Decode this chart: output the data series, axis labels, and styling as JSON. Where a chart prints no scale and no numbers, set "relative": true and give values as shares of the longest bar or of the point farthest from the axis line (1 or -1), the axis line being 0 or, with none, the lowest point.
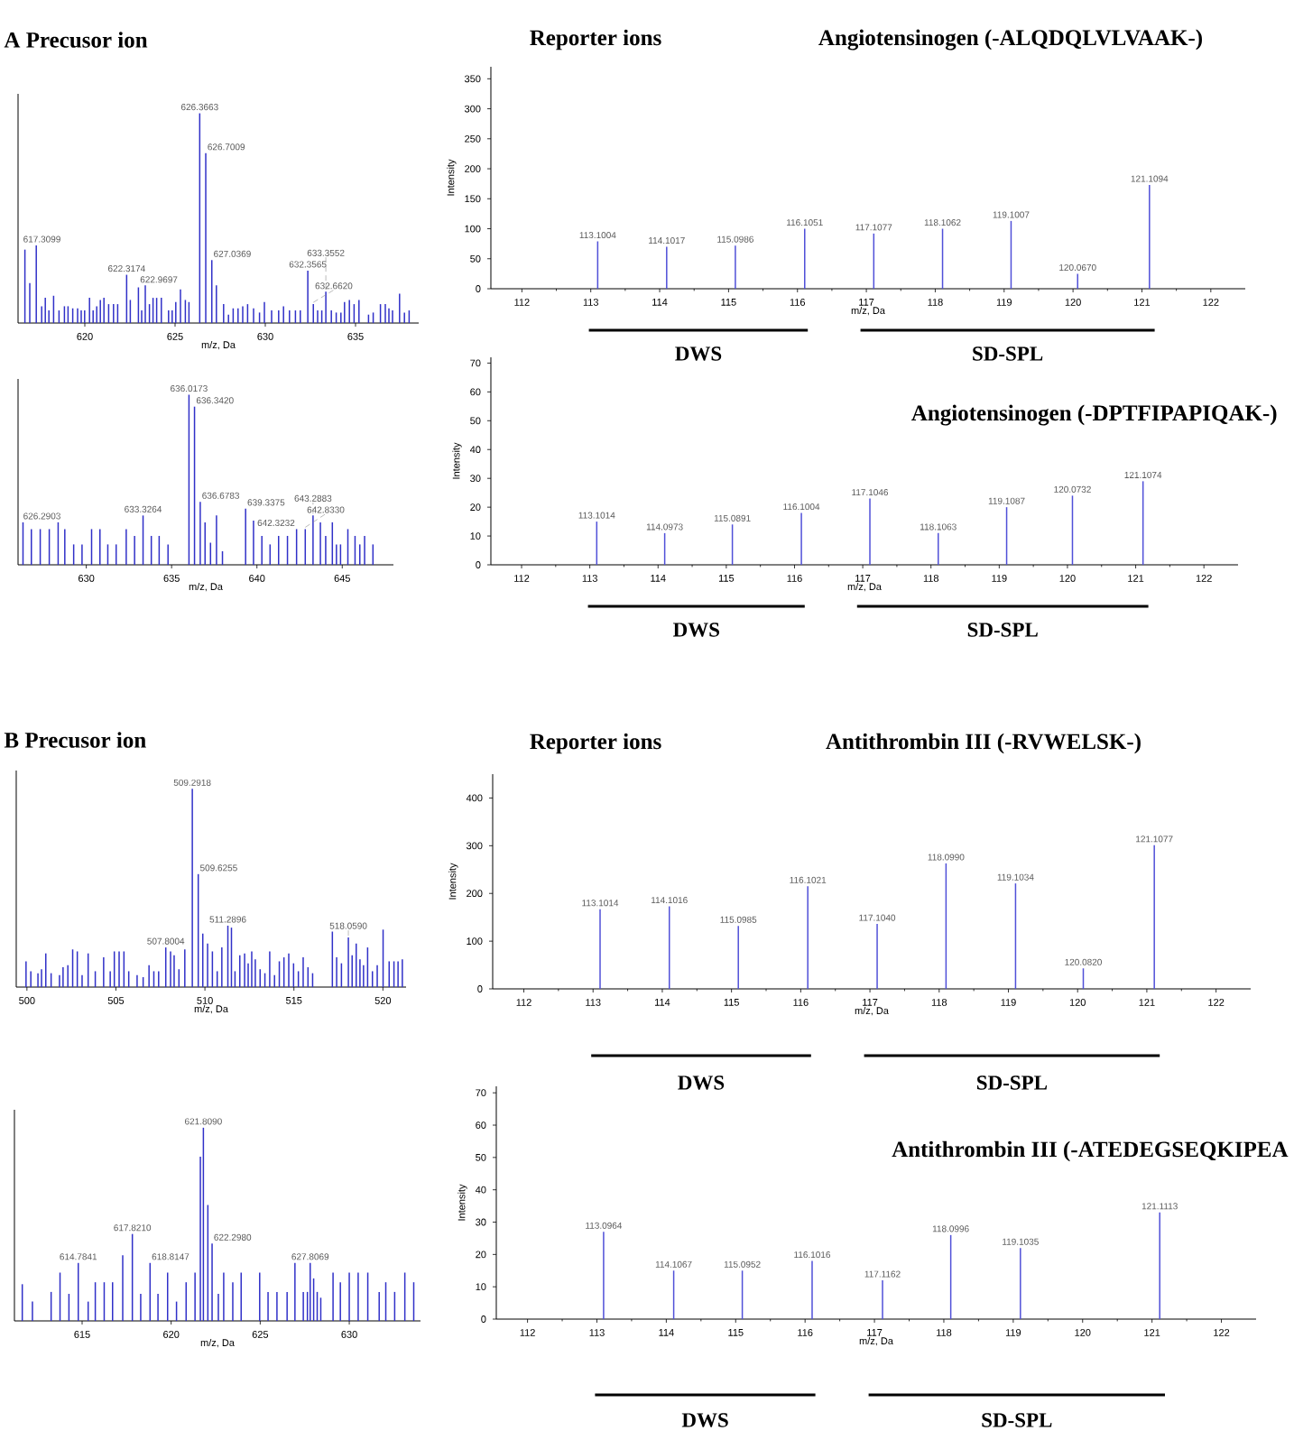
{
  "chart_data": [
    {
      "type": "bar",
      "title": "A Precusor ion",
      "xlabel": "m/z, Da",
      "relative": true,
      "tick_labels": "x",
      "color": "#3030c8",
      "xlim": [
        616.3,
        638.5
      ],
      "xticks": [
        620,
        625,
        630,
        635
      ],
      "x": [
        616.68,
        616.95,
        617.3099,
        617.61,
        617.81,
        618.01,
        618.27,
        618.57,
        618.87,
        619.07,
        619.33,
        619.6,
        619.8,
        619.99,
        620.26,
        620.46,
        620.66,
        620.86,
        621.06,
        621.32,
        621.59,
        621.82,
        622.3174,
        622.52,
        622.9697,
        623.15,
        623.35,
        623.58,
        623.78,
        623.98,
        624.24,
        624.64,
        624.84,
        625.04,
        625.3,
        625.57,
        625.77,
        626.3663,
        626.7009,
        627.0369,
        627.29,
        627.69,
        627.96,
        628.22,
        628.49,
        628.75,
        629.02,
        629.35,
        629.68,
        629.95,
        630.35,
        630.74,
        631.01,
        631.34,
        631.67,
        631.94,
        632.3565,
        632.662,
        632.9,
        633.13,
        633.3552,
        633.66,
        633.93,
        634.19,
        634.39,
        634.66,
        634.92,
        635.19,
        635.72,
        635.98,
        636.38,
        636.65,
        636.85,
        637.05,
        637.44,
        637.71,
        637.97
      ],
      "values": [
        0.35,
        0.19,
        0.37,
        0.08,
        0.12,
        0.06,
        0.13,
        0.06,
        0.08,
        0.08,
        0.07,
        0.07,
        0.06,
        0.06,
        0.12,
        0.06,
        0.08,
        0.11,
        0.12,
        0.09,
        0.09,
        0.09,
        0.23,
        0.11,
        0.17,
        0.06,
        0.18,
        0.09,
        0.12,
        0.12,
        0.12,
        0.06,
        0.06,
        0.1,
        0.16,
        0.11,
        0.1,
        1.0,
        0.81,
        0.3,
        0.18,
        0.09,
        0.04,
        0.07,
        0.07,
        0.08,
        0.09,
        0.07,
        0.05,
        0.1,
        0.06,
        0.06,
        0.08,
        0.06,
        0.06,
        0.06,
        0.25,
        0.09,
        0.06,
        0.06,
        0.15,
        0.06,
        0.05,
        0.05,
        0.1,
        0.11,
        0.09,
        0.11,
        0.04,
        0.05,
        0.09,
        0.09,
        0.07,
        0.06,
        0.14,
        0.05,
        0.06
      ],
      "annotations": [
        {
          "text": "617.3099",
          "x": 617.3099,
          "y": 0.37
        },
        {
          "text": "622.3174",
          "x": 622.3174,
          "y": 0.23
        },
        {
          "text": "622.9697",
          "x": 622.9697,
          "y": 0.17
        },
        {
          "text": "626.3663",
          "x": 626.3663,
          "y": 1.0
        },
        {
          "text": "626.7009",
          "x": 626.7009,
          "y": 0.81
        },
        {
          "text": "627.0369",
          "x": 627.0369,
          "y": 0.3
        },
        {
          "text": "632.3565",
          "x": 632.3565,
          "y": 0.25
        },
        {
          "text": "632.6620",
          "x": 632.662,
          "y": 0.09
        },
        {
          "text": "633.3552",
          "x": 633.3552,
          "y": 0.15
        }
      ]
    },
    {
      "type": "bar",
      "title": "Angiotensinogen (-ALQDQLVLVAAK-)",
      "xlabel": "m/z, Da",
      "ylabel": "Intensity",
      "color": "#5050d8",
      "xlim": [
        111.55,
        122.5
      ],
      "xticks": [
        112,
        113,
        114,
        115,
        116,
        117,
        118,
        119,
        120,
        121,
        122
      ],
      "ylim": [
        0,
        370
      ],
      "yticks": [
        0,
        50,
        100,
        150,
        200,
        250,
        300,
        350
      ],
      "x": [
        113.1004,
        114.1017,
        115.0986,
        116.1051,
        117.1077,
        118.1062,
        119.1007,
        120.067,
        121.1094
      ],
      "values": [
        79,
        70,
        72,
        100,
        92,
        100,
        113,
        25,
        173
      ],
      "annotations": [
        "Reporter ions",
        {
          "text": "113.1004",
          "x": 113.1004,
          "y": 79
        },
        {
          "text": "114.1017",
          "x": 114.1017,
          "y": 70
        },
        {
          "text": "115.0986",
          "x": 115.0986,
          "y": 72
        },
        {
          "text": "116.1051",
          "x": 116.1051,
          "y": 100
        },
        {
          "text": "117.1077",
          "x": 117.1077,
          "y": 92
        },
        {
          "text": "118.1062",
          "x": 118.1062,
          "y": 100
        },
        {
          "text": "119.1007",
          "x": 119.1007,
          "y": 113
        },
        {
          "text": "120.0670",
          "x": 120.067,
          "y": 25
        },
        {
          "text": "121.1094",
          "x": 121.1094,
          "y": 173
        },
        "DWS",
        "SD-SPL"
      ]
    },
    {
      "type": "bar",
      "xlabel": "m/z, Da",
      "relative": true,
      "tick_labels": "x",
      "color": "#3030c8",
      "xlim": [
        626.0,
        648.0
      ],
      "xticks": [
        630,
        635,
        640,
        645
      ],
      "x": [
        626.2903,
        626.78,
        627.3,
        627.83,
        628.35,
        628.74,
        629.26,
        629.75,
        630.31,
        630.8,
        631.26,
        631.75,
        632.34,
        632.83,
        633.3264,
        633.81,
        634.27,
        634.79,
        636.0173,
        636.342,
        636.6783,
        636.96,
        637.28,
        637.63,
        637.98,
        639.3375,
        639.8,
        640.29,
        640.77,
        641.27,
        641.79,
        642.3232,
        642.833,
        643.2883,
        643.72,
        644.03,
        644.42,
        644.66,
        644.9,
        645.33,
        645.75,
        646.03,
        646.31,
        646.8
      ],
      "values": [
        0.25,
        0.21,
        0.21,
        0.21,
        0.25,
        0.21,
        0.12,
        0.12,
        0.21,
        0.21,
        0.12,
        0.12,
        0.21,
        0.17,
        0.29,
        0.17,
        0.17,
        0.12,
        1.0,
        0.93,
        0.37,
        0.25,
        0.13,
        0.29,
        0.08,
        0.33,
        0.26,
        0.17,
        0.12,
        0.17,
        0.17,
        0.21,
        0.21,
        0.29,
        0.25,
        0.17,
        0.25,
        0.12,
        0.12,
        0.21,
        0.17,
        0.12,
        0.17,
        0.12
      ],
      "annotations": [
        {
          "text": "626.2903",
          "x": 626.2903,
          "y": 0.25
        },
        {
          "text": "633.3264",
          "x": 633.3264,
          "y": 0.29
        },
        {
          "text": "636.0173",
          "x": 636.0173,
          "y": 1.0
        },
        {
          "text": "636.3420",
          "x": 636.342,
          "y": 0.93
        },
        {
          "text": "636.6783",
          "x": 636.6783,
          "y": 0.37
        },
        {
          "text": "639.3375",
          "x": 639.3375,
          "y": 0.33
        },
        {
          "text": "642.3232",
          "x": 642.3232,
          "y": 0.21
        },
        {
          "text": "642.8330",
          "x": 642.833,
          "y": 0.21
        },
        {
          "text": "643.2883",
          "x": 643.2883,
          "y": 0.29
        }
      ]
    },
    {
      "type": "bar",
      "title": "Angiotensinogen (-DPTFIPAPIQAK-)",
      "xlabel": "m/z, Da",
      "ylabel": "Intensity",
      "color": "#5050d8",
      "xlim": [
        111.55,
        122.5
      ],
      "xticks": [
        112,
        113,
        114,
        115,
        116,
        117,
        118,
        119,
        120,
        121,
        122
      ],
      "ylim": [
        0,
        72
      ],
      "yticks": [
        0,
        10,
        20,
        30,
        40,
        50,
        60,
        70
      ],
      "x": [
        113.1014,
        114.0973,
        115.0891,
        116.1004,
        117.1046,
        118.1063,
        119.1087,
        120.0732,
        121.1074
      ],
      "values": [
        15,
        11,
        14,
        18,
        23,
        11,
        20,
        24,
        29
      ],
      "annotations": [
        {
          "text": "113.1014",
          "x": 113.1014,
          "y": 15
        },
        {
          "text": "114.0973",
          "x": 114.0973,
          "y": 11
        },
        {
          "text": "115.0891",
          "x": 115.0891,
          "y": 14
        },
        {
          "text": "116.1004",
          "x": 116.1004,
          "y": 18
        },
        {
          "text": "117.1046",
          "x": 117.1046,
          "y": 23
        },
        {
          "text": "118.1063",
          "x": 118.1063,
          "y": 11
        },
        {
          "text": "119.1087",
          "x": 119.1087,
          "y": 20
        },
        {
          "text": "120.0732",
          "x": 120.0732,
          "y": 24
        },
        {
          "text": "121.1074",
          "x": 121.1074,
          "y": 29
        },
        "DWS",
        "SD-SPL"
      ]
    },
    {
      "type": "bar",
      "title": "B Precusor ion",
      "xlabel": "m/z, Da",
      "relative": true,
      "tick_labels": "x",
      "color": "#3030c8",
      "xlim": [
        499.4,
        521.3
      ],
      "xticks": [
        500,
        505,
        510,
        515,
        520
      ],
      "x": [
        499.95,
        500.22,
        500.62,
        500.82,
        501.06,
        501.36,
        501.83,
        502.03,
        502.3,
        502.57,
        502.83,
        503.1,
        503.44,
        503.84,
        504.31,
        504.68,
        504.91,
        505.18,
        505.45,
        505.72,
        506.19,
        506.53,
        506.86,
        507.13,
        507.4,
        507.8004,
        508.07,
        508.27,
        508.54,
        508.87,
        509.2918,
        509.6255,
        509.88,
        510.15,
        510.42,
        510.69,
        510.95,
        511.2896,
        511.49,
        511.69,
        511.96,
        512.23,
        512.43,
        512.63,
        512.83,
        513.1,
        513.37,
        513.64,
        513.91,
        514.18,
        514.44,
        514.71,
        514.98,
        515.25,
        515.52,
        515.79,
        516.05,
        517.16,
        517.4,
        517.67,
        518.059,
        518.27,
        518.5,
        518.71,
        518.91,
        519.14,
        519.41,
        519.68,
        520.01,
        520.35,
        520.62,
        520.85,
        521.09
      ],
      "values": [
        0.13,
        0.08,
        0.07,
        0.09,
        0.17,
        0.07,
        0.06,
        0.1,
        0.11,
        0.19,
        0.18,
        0.06,
        0.17,
        0.08,
        0.15,
        0.08,
        0.18,
        0.18,
        0.18,
        0.08,
        0.06,
        0.05,
        0.11,
        0.08,
        0.08,
        0.2,
        0.18,
        0.16,
        0.09,
        0.19,
        1.0,
        0.57,
        0.27,
        0.22,
        0.18,
        0.08,
        0.2,
        0.31,
        0.3,
        0.08,
        0.16,
        0.17,
        0.12,
        0.18,
        0.14,
        0.09,
        0.07,
        0.18,
        0.06,
        0.13,
        0.15,
        0.17,
        0.12,
        0.08,
        0.15,
        0.1,
        0.07,
        0.28,
        0.15,
        0.12,
        0.25,
        0.16,
        0.22,
        0.14,
        0.11,
        0.2,
        0.08,
        0.11,
        0.29,
        0.13,
        0.13,
        0.13,
        0.14
      ],
      "annotations": [
        {
          "text": "507.8004",
          "x": 507.8004,
          "y": 0.2
        },
        {
          "text": "509.2918",
          "x": 509.2918,
          "y": 1.0
        },
        {
          "text": "509.6255",
          "x": 509.6255,
          "y": 0.57
        },
        {
          "text": "511.2896",
          "x": 511.2896,
          "y": 0.31
        },
        {
          "text": "518.0590",
          "x": 518.059,
          "y": 0.25
        }
      ]
    },
    {
      "type": "bar",
      "title": "Antithrombin III (-RVWELSK-)",
      "xlabel": "m/z, Da",
      "ylabel": "Intensity",
      "color": "#5050d8",
      "xlim": [
        111.55,
        122.5
      ],
      "xticks": [
        112,
        113,
        114,
        115,
        116,
        117,
        118,
        119,
        120,
        121,
        122
      ],
      "ylim": [
        0,
        450
      ],
      "yticks": [
        0,
        100,
        200,
        300,
        400
      ],
      "x": [
        113.1014,
        114.1016,
        115.0985,
        116.1021,
        117.104,
        118.099,
        119.1034,
        120.082,
        121.1077
      ],
      "values": [
        167,
        173,
        132,
        215,
        136,
        263,
        221,
        43,
        301
      ],
      "annotations": [
        "Reporter ions",
        {
          "text": "113.1014",
          "x": 113.1014,
          "y": 167
        },
        {
          "text": "114.1016",
          "x": 114.1016,
          "y": 173
        },
        {
          "text": "115.0985",
          "x": 115.0985,
          "y": 132
        },
        {
          "text": "116.1021",
          "x": 116.1021,
          "y": 215
        },
        {
          "text": "117.1040",
          "x": 117.104,
          "y": 136
        },
        {
          "text": "118.0990",
          "x": 118.099,
          "y": 263
        },
        {
          "text": "119.1034",
          "x": 119.1034,
          "y": 221
        },
        {
          "text": "120.0820",
          "x": 120.082,
          "y": 43
        },
        {
          "text": "121.1077",
          "x": 121.1077,
          "y": 301
        },
        "DWS",
        "SD-SPL"
      ]
    },
    {
      "type": "bar",
      "xlabel": "m/z, Da",
      "relative": true,
      "tick_labels": "x",
      "color": "#3030c8",
      "xlim": [
        611.2,
        634.0
      ],
      "xticks": [
        615,
        620,
        625,
        630
      ],
      "x": [
        611.64,
        612.21,
        613.26,
        613.76,
        614.26,
        614.7841,
        615.34,
        615.74,
        616.24,
        616.71,
        617.28,
        617.821,
        618.29,
        618.8147,
        619.26,
        619.8,
        620.3,
        620.84,
        621.34,
        621.64,
        621.809,
        622.06,
        622.298,
        622.65,
        622.95,
        623.46,
        623.93,
        624.97,
        625.44,
        625.94,
        626.51,
        626.95,
        627.42,
        627.65,
        627.8069,
        628.0,
        628.2,
        628.4,
        629.09,
        629.5,
        630.0,
        630.5,
        631.04,
        631.68,
        632.05,
        632.55,
        633.12,
        633.62
      ],
      "values": [
        0.19,
        0.1,
        0.15,
        0.25,
        0.14,
        0.3,
        0.1,
        0.2,
        0.2,
        0.2,
        0.34,
        0.45,
        0.14,
        0.3,
        0.14,
        0.25,
        0.1,
        0.2,
        0.25,
        0.85,
        1.0,
        0.6,
        0.4,
        0.14,
        0.25,
        0.2,
        0.25,
        0.25,
        0.15,
        0.15,
        0.15,
        0.3,
        0.15,
        0.15,
        0.3,
        0.22,
        0.15,
        0.12,
        0.25,
        0.2,
        0.25,
        0.25,
        0.25,
        0.15,
        0.2,
        0.15,
        0.25,
        0.2
      ],
      "annotations": [
        {
          "text": "614.7841",
          "x": 614.7841,
          "y": 0.3
        },
        {
          "text": "617.8210",
          "x": 617.821,
          "y": 0.45
        },
        {
          "text": "618.8147",
          "x": 618.8147,
          "y": 0.3
        },
        {
          "text": "621.8090",
          "x": 621.809,
          "y": 1.0
        },
        {
          "text": "622.2980",
          "x": 622.298,
          "y": 0.4
        },
        {
          "text": "627.8069",
          "x": 627.8069,
          "y": 0.3
        }
      ]
    },
    {
      "type": "bar",
      "title": "Antithrombin III (-ATEDEGSEQKIPEA",
      "xlabel": "m/z, Da",
      "ylabel": "Intensity",
      "color": "#5050d8",
      "xlim": [
        111.55,
        122.5
      ],
      "xticks": [
        112,
        113,
        114,
        115,
        116,
        117,
        118,
        119,
        120,
        121,
        122
      ],
      "ylim": [
        0,
        72
      ],
      "yticks": [
        0,
        10,
        20,
        30,
        40,
        50,
        60,
        70
      ],
      "x": [
        113.0964,
        114.1067,
        115.0952,
        116.1016,
        117.1162,
        118.0996,
        119.1035,
        121.1113
      ],
      "values": [
        27,
        15,
        15,
        18,
        12,
        26,
        22,
        33
      ],
      "annotations": [
        {
          "text": "113.0964",
          "x": 113.0964,
          "y": 27
        },
        {
          "text": "114.1067",
          "x": 114.1067,
          "y": 15
        },
        {
          "text": "115.0952",
          "x": 115.0952,
          "y": 15
        },
        {
          "text": "116.1016",
          "x": 116.1016,
          "y": 18
        },
        {
          "text": "117.1162",
          "x": 117.1162,
          "y": 12
        },
        {
          "text": "118.0996",
          "x": 118.0996,
          "y": 26
        },
        {
          "text": "119.1035",
          "x": 119.1035,
          "y": 22
        },
        {
          "text": "121.1113",
          "x": 121.1113,
          "y": 33
        },
        "DWS",
        "SD-SPL"
      ]
    }
  ]
}
